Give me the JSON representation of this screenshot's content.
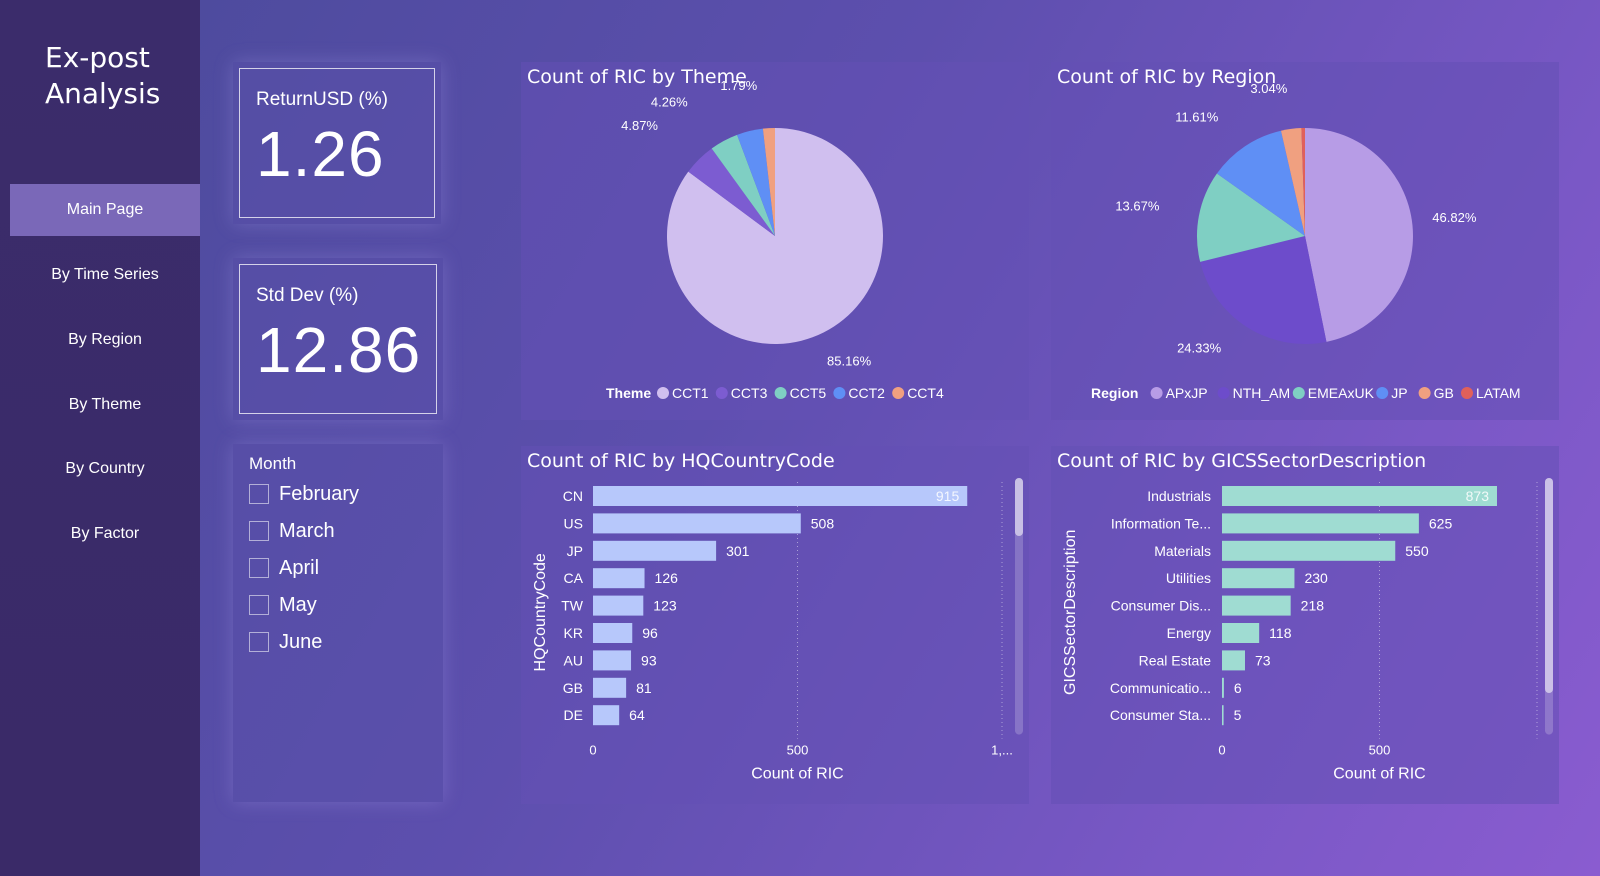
{
  "sidebar": {
    "title_line1": "Ex-post",
    "title_line2": "Analysis",
    "nav": [
      {
        "label": "Main Page",
        "active": true
      },
      {
        "label": "By Time Series"
      },
      {
        "label": "By Region"
      },
      {
        "label": "By Theme"
      },
      {
        "label": "By Country"
      },
      {
        "label": "By Factor"
      }
    ]
  },
  "kpis": [
    {
      "label": "ReturnUSD (%)",
      "value": "1.26"
    },
    {
      "label": "Std Dev (%)",
      "value": "12.86"
    }
  ],
  "slicer": {
    "title": "Month",
    "options": [
      "February",
      "March",
      "April",
      "May",
      "June"
    ]
  },
  "colors": {
    "cct1": "#d0bfef",
    "cct3": "#7c5cd1",
    "cct5": "#7fcfc3",
    "cct2": "#5f8ff5",
    "cct4": "#f0a080",
    "apxjp": "#b79ce6",
    "nth_am": "#6d4ccb",
    "emeaxuk": "#7fcfc3",
    "jp": "#5f8ff5",
    "gb": "#f0a080",
    "latam": "#e0605a",
    "bar_country": "#b7c8fb",
    "bar_sector": "#9fdcd2"
  },
  "chart_data": [
    {
      "type": "pie",
      "title": "Count of RIC by Theme",
      "legend_title": "Theme",
      "labels": [
        "CCT1",
        "CCT3",
        "CCT5",
        "CCT2",
        "CCT4"
      ],
      "values": [
        85.16,
        4.87,
        4.26,
        3.92,
        1.79
      ],
      "data_labels": [
        "85.16%",
        "4.87%",
        "4.26%",
        "",
        "1.79%"
      ]
    },
    {
      "type": "pie",
      "title": "Count of RIC by Region",
      "legend_title": "Region",
      "labels": [
        "APxJP",
        "NTH_AM",
        "EMEAxUK",
        "JP",
        "GB",
        "LATAM"
      ],
      "values": [
        46.82,
        24.33,
        13.67,
        11.61,
        3.04,
        0.53
      ],
      "data_labels": [
        "46.82%",
        "24.33%",
        "13.67%",
        "11.61%",
        "3.04%",
        ""
      ]
    },
    {
      "type": "bar",
      "title": "Count of RIC by HQCountryCode",
      "ylabel": "HQCountryCode",
      "xlabel": "Count of RIC",
      "categories": [
        "CN",
        "US",
        "JP",
        "CA",
        "TW",
        "KR",
        "AU",
        "GB",
        "DE"
      ],
      "values": [
        915,
        508,
        301,
        126,
        123,
        96,
        93,
        81,
        64
      ],
      "xticks": [
        "0",
        "500",
        "1,..."
      ],
      "xlim": [
        0,
        1000
      ]
    },
    {
      "type": "bar",
      "title": "Count of RIC by GICSSectorDescription",
      "ylabel": "GICSSectorDescription",
      "xlabel": "Count of RIC",
      "categories": [
        "Industrials",
        "Information Te...",
        "Materials",
        "Utilities",
        "Consumer Dis...",
        "Energy",
        "Real Estate",
        "Communicatio...",
        "Consumer Sta..."
      ],
      "values": [
        873,
        625,
        550,
        230,
        218,
        118,
        73,
        6,
        5
      ],
      "xticks": [
        "0",
        "500"
      ],
      "xlim": [
        0,
        1000
      ]
    }
  ]
}
